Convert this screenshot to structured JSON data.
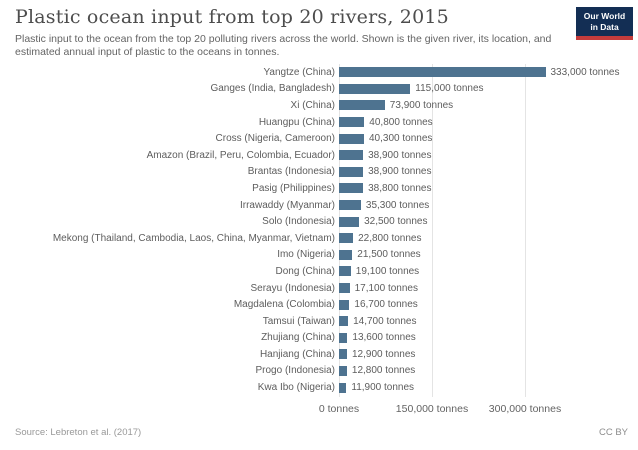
{
  "header": {
    "title": "Plastic ocean input from top 20 rivers, 2015",
    "subtitle": "Plastic input to the ocean from the top 20 polluting rivers across the world. Shown is the given river, its location, and estimated annual input of plastic to the oceans in tonnes.",
    "logo": {
      "line1": "Our World",
      "line2": "in Data",
      "bg_color": "#132e54",
      "stripe_color": "#c53c3c"
    }
  },
  "chart_data": {
    "type": "bar",
    "orientation": "horizontal",
    "title": "Plastic ocean input from top 20 rivers, 2015",
    "unit": "tonnes",
    "bar_color": "#4e7390",
    "grid": true,
    "xlim": [
      0,
      345000
    ],
    "categories": [
      "Yangtze (China)",
      "Ganges (India, Bangladesh)",
      "Xi (China)",
      "Huangpu (China)",
      "Cross (Nigeria, Cameroon)",
      "Amazon (Brazil, Peru, Colombia, Ecuador)",
      "Brantas (Indonesia)",
      "Pasig (Philippines)",
      "Irrawaddy (Myanmar)",
      "Solo (Indonesia)",
      "Mekong (Thailand, Cambodia, Laos, China, Myanmar, Vietnam)",
      "Imo (Nigeria)",
      "Dong (China)",
      "Serayu (Indonesia)",
      "Magdalena (Colombia)",
      "Tamsui (Taiwan)",
      "Zhujiang (China)",
      "Hanjiang (China)",
      "Progo (Indonesia)",
      "Kwa Ibo (Nigeria)"
    ],
    "values": [
      333000,
      115000,
      73900,
      40800,
      40300,
      38900,
      38900,
      38800,
      35300,
      32500,
      22800,
      21500,
      19100,
      17100,
      16700,
      14700,
      13600,
      12900,
      12800,
      11900
    ],
    "value_labels": [
      "333,000 tonnes",
      "115,000 tonnes",
      "73,900 tonnes",
      "40,800 tonnes",
      "40,300 tonnes",
      "38,900 tonnes",
      "38,900 tonnes",
      "38,800 tonnes",
      "35,300 tonnes",
      "32,500 tonnes",
      "22,800 tonnes",
      "21,500 tonnes",
      "19,100 tonnes",
      "17,100 tonnes",
      "16,700 tonnes",
      "14,700 tonnes",
      "13,600 tonnes",
      "12,900 tonnes",
      "12,800 tonnes",
      "11,900 tonnes"
    ],
    "x_ticks": [
      {
        "value": 0,
        "label": "0 tonnes"
      },
      {
        "value": 150000,
        "label": "150,000 tonnes"
      },
      {
        "value": 300000,
        "label": "300,000 tonnes"
      }
    ]
  },
  "footer": {
    "source": "Source: Lebreton et al. (2017)",
    "license": "CC BY"
  }
}
